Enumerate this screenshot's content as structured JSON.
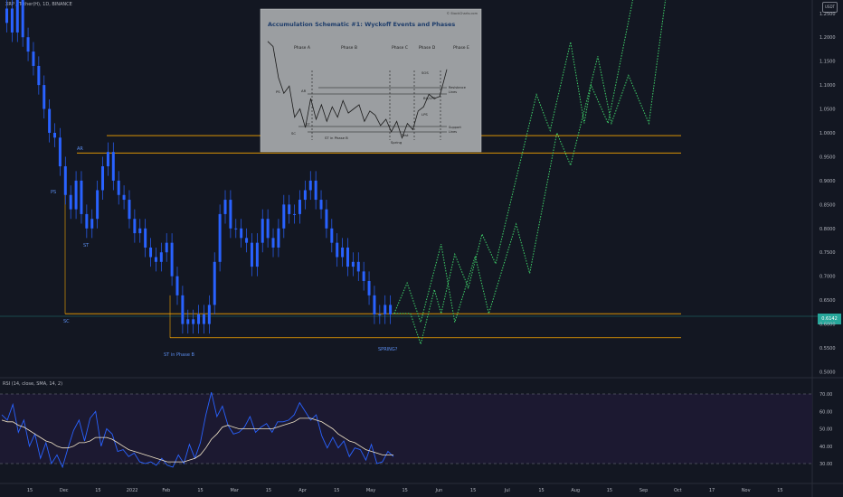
{
  "header": {
    "symbol_line": "XRP / Tether(H), 1D, BINANCE",
    "currency_badge": "USDT",
    "rsi_label": "RSI (14, close, SMA, 14, 2)"
  },
  "colors": {
    "background": "#131722",
    "candle": "#2962ff",
    "support_resistance": "#f7a600",
    "projection": "#3fd46b",
    "rsi": "#2962ff",
    "rsi_ma": "#f2e6c9",
    "rsi_band": "#1e1a33",
    "price_badge": "#26a69a"
  },
  "chart_data": [
    {
      "type": "candlestick",
      "title": "XRP / Tether(H), 1D, BINANCE",
      "y_axis_ticks": [
        "1.3500",
        "1.3000",
        "1.2500",
        "1.2000",
        "1.1500",
        "1.1000",
        "1.0500",
        "1.0000",
        "0.9500",
        "0.9000",
        "0.8500",
        "0.8000",
        "0.7500",
        "0.7000",
        "0.6500",
        "0.6000",
        "0.5500",
        "0.5000"
      ],
      "x_axis_ticks": [
        "15",
        "Dec",
        "15",
        "2022",
        "Feb",
        "15",
        "Mar",
        "15",
        "Apr",
        "15",
        "May",
        "15",
        "Jun",
        "15",
        "Jul",
        "15",
        "Aug",
        "15",
        "Sep",
        "Oct",
        "17",
        "Nov",
        "15"
      ],
      "ylim": [
        0.5,
        1.38
      ],
      "current_price": "0.6142",
      "price_path": [
        1.23,
        1.26,
        1.21,
        1.28,
        1.2,
        1.17,
        1.14,
        1.1,
        1.05,
        1.0,
        0.99,
        0.93,
        0.87,
        0.84,
        0.9,
        0.83,
        0.8,
        0.82,
        0.88,
        0.93,
        0.96,
        0.9,
        0.87,
        0.86,
        0.82,
        0.79,
        0.8,
        0.76,
        0.74,
        0.73,
        0.75,
        0.77,
        0.7,
        0.66,
        0.6,
        0.61,
        0.6,
        0.62,
        0.6,
        0.64,
        0.73,
        0.83,
        0.86,
        0.8,
        0.8,
        0.78,
        0.77,
        0.72,
        0.77,
        0.82,
        0.78,
        0.76,
        0.8,
        0.85,
        0.83,
        0.83,
        0.86,
        0.88,
        0.9,
        0.86,
        0.84,
        0.8,
        0.77,
        0.74,
        0.76,
        0.72,
        0.73,
        0.71,
        0.69,
        0.66,
        0.62,
        0.62,
        0.64,
        0.62
      ],
      "horizontal_levels": [
        0.9942,
        0.9578,
        0.6215,
        0.5713
      ],
      "projection_paths": [
        [
          [
            0.622,
            0.622
          ],
          [
            0.67,
            0.622
          ],
          [
            0.7,
            0.558
          ],
          [
            0.74,
            0.672
          ],
          [
            0.76,
            0.622
          ],
          [
            0.8,
            0.746
          ],
          [
            0.84,
            0.676
          ],
          [
            0.88,
            0.788
          ],
          [
            0.92,
            0.726
          ],
          [
            1.04,
            1.08
          ],
          [
            1.08,
            1.005
          ],
          [
            1.14,
            1.19
          ],
          [
            1.18,
            1.02
          ],
          [
            1.2,
            1.1
          ],
          [
            1.25,
            1.02
          ],
          [
            1.34,
            1.34
          ]
        ],
        [
          [
            0.622,
            0.622
          ],
          [
            0.66,
            0.686
          ],
          [
            0.7,
            0.604
          ],
          [
            0.76,
            0.767
          ],
          [
            0.8,
            0.604
          ],
          [
            0.86,
            0.742
          ],
          [
            0.9,
            0.622
          ],
          [
            0.98,
            0.809
          ],
          [
            1.02,
            0.706
          ],
          [
            1.1,
            1.0
          ],
          [
            1.14,
            0.932
          ],
          [
            1.22,
            1.16
          ],
          [
            1.26,
            1.02
          ],
          [
            1.31,
            1.12
          ],
          [
            1.37,
            1.02
          ],
          [
            1.43,
            1.34
          ]
        ]
      ],
      "annotations": [
        "AR",
        "PS",
        "ST",
        "SC",
        "ST in Phase B",
        "SPRING?"
      ]
    },
    {
      "type": "line",
      "title": "RSI (14, close, SMA, 14, 2)",
      "y_axis_ticks": [
        "70.00",
        "60.00",
        "50.00",
        "40.00",
        "30.00"
      ],
      "ylim": [
        25,
        73
      ],
      "upper_band": 70,
      "lower_band": 30,
      "series": [
        {
          "name": "RSI",
          "values": [
            58,
            55,
            64,
            48,
            55,
            40,
            47,
            33,
            42,
            30,
            35,
            28,
            39,
            49,
            55,
            43,
            56,
            60,
            40,
            50,
            47,
            37,
            38,
            34,
            36,
            31,
            30,
            31,
            29,
            33,
            29,
            28,
            35,
            30,
            41,
            33,
            42,
            58,
            71,
            57,
            63,
            52,
            47,
            48,
            51,
            57,
            48,
            51,
            53,
            48,
            54,
            54,
            55,
            58,
            65,
            60,
            55,
            58,
            46,
            39,
            45,
            39,
            43,
            34,
            39,
            38,
            32,
            41,
            30,
            31,
            37,
            34
          ]
        },
        {
          "name": "RSI-based MA",
          "values": [
            55,
            54,
            54,
            52,
            51,
            49,
            47,
            45,
            43,
            42,
            40,
            39,
            39,
            40,
            42,
            42,
            43,
            45,
            45,
            45,
            44,
            42,
            40,
            38,
            37,
            36,
            35,
            34,
            33,
            32,
            31,
            31,
            31,
            31,
            32,
            33,
            35,
            39,
            44,
            47,
            51,
            52,
            51,
            50,
            50,
            50,
            50,
            50,
            50,
            50,
            51,
            52,
            53,
            54,
            56,
            56,
            56,
            55,
            54,
            52,
            50,
            47,
            45,
            43,
            42,
            40,
            38,
            37,
            36,
            35,
            35,
            35
          ]
        }
      ]
    }
  ],
  "inset": {
    "title": "Accumulation Schematic #1: Wyckoff Events and Phases",
    "watermark": "© StockCharts.com",
    "phases": [
      "Phase A",
      "Phase B",
      "Phase C",
      "Phase D",
      "Phase E"
    ],
    "labels": [
      "PS",
      "AR",
      "SC",
      "ST",
      "ST in Phase B",
      "Spring",
      "Test",
      "SOS",
      "BU/LPS",
      "LPS",
      "Resistance Lines",
      "Support Lines"
    ],
    "path": [
      [
        0,
        95
      ],
      [
        3,
        90
      ],
      [
        6,
        60
      ],
      [
        9,
        45
      ],
      [
        12,
        52
      ],
      [
        15,
        22
      ],
      [
        18,
        30
      ],
      [
        21,
        12
      ],
      [
        24,
        40
      ],
      [
        27,
        20
      ],
      [
        30,
        34
      ],
      [
        33,
        18
      ],
      [
        36,
        32
      ],
      [
        39,
        22
      ],
      [
        42,
        38
      ],
      [
        45,
        26
      ],
      [
        48,
        30
      ],
      [
        51,
        34
      ],
      [
        54,
        18
      ],
      [
        57,
        28
      ],
      [
        60,
        24
      ],
      [
        63,
        14
      ],
      [
        66,
        20
      ],
      [
        69,
        8
      ],
      [
        72,
        18
      ],
      [
        75,
        2
      ],
      [
        78,
        16
      ],
      [
        81,
        10
      ],
      [
        84,
        28
      ],
      [
        87,
        32
      ],
      [
        90,
        44
      ],
      [
        93,
        40
      ],
      [
        96,
        42
      ],
      [
        100,
        68
      ]
    ]
  }
}
